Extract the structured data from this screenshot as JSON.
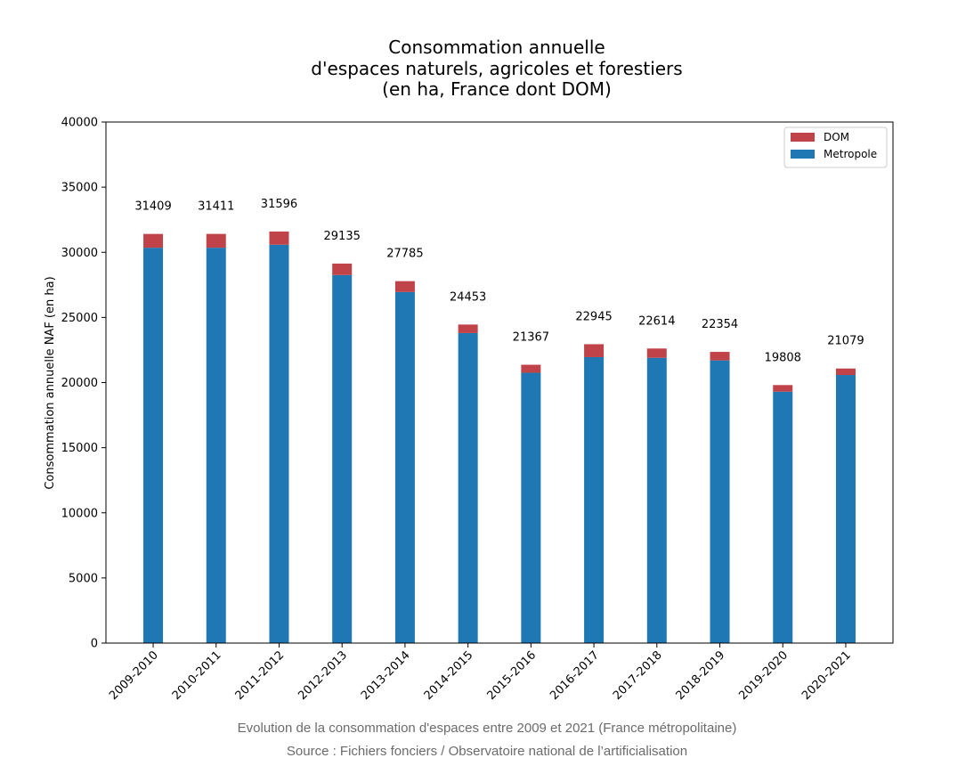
{
  "chart_data": {
    "type": "bar",
    "stacked": true,
    "title": [
      "Consommation annuelle",
      "d'espaces naturels, agricoles et forestiers",
      "(en ha, France dont DOM)"
    ],
    "xlabel": "",
    "ylabel": "Consommation annuelle NAF (en ha)",
    "ylim": [
      0,
      40000
    ],
    "yticks": [
      0,
      5000,
      10000,
      15000,
      20000,
      25000,
      30000,
      35000,
      40000
    ],
    "grid": false,
    "legend_position": "top-right",
    "categories": [
      "2009-2010",
      "2010-2011",
      "2011-2012",
      "2012-2013",
      "2013-2014",
      "2014-2015",
      "2015-2016",
      "2016-2017",
      "2017-2018",
      "2018-2019",
      "2019-2020",
      "2020-2021"
    ],
    "series": [
      {
        "name": "Metropole",
        "color": "#1f77b4",
        "values": [
          30350,
          30350,
          30580,
          28250,
          26950,
          23800,
          20750,
          21950,
          21900,
          21700,
          19300,
          20580
        ]
      },
      {
        "name": "DOM",
        "color": "#c0434a",
        "values": [
          1059,
          1061,
          1016,
          885,
          835,
          653,
          617,
          995,
          714,
          654,
          508,
          499
        ]
      }
    ],
    "totals": [
      "31409",
      "31411",
      "31596",
      "29135",
      "27785",
      "24453",
      "21367",
      "22945",
      "22614",
      "22354",
      "19808",
      "21079"
    ],
    "legend_order": [
      "DOM",
      "Metropole"
    ]
  },
  "captions": {
    "line1": "Evolution de la consommation d'espaces entre 2009 et 2021 (France métropolitaine)",
    "line2": "Source : Fichiers fonciers / Observatoire national de l’artificialisation"
  }
}
